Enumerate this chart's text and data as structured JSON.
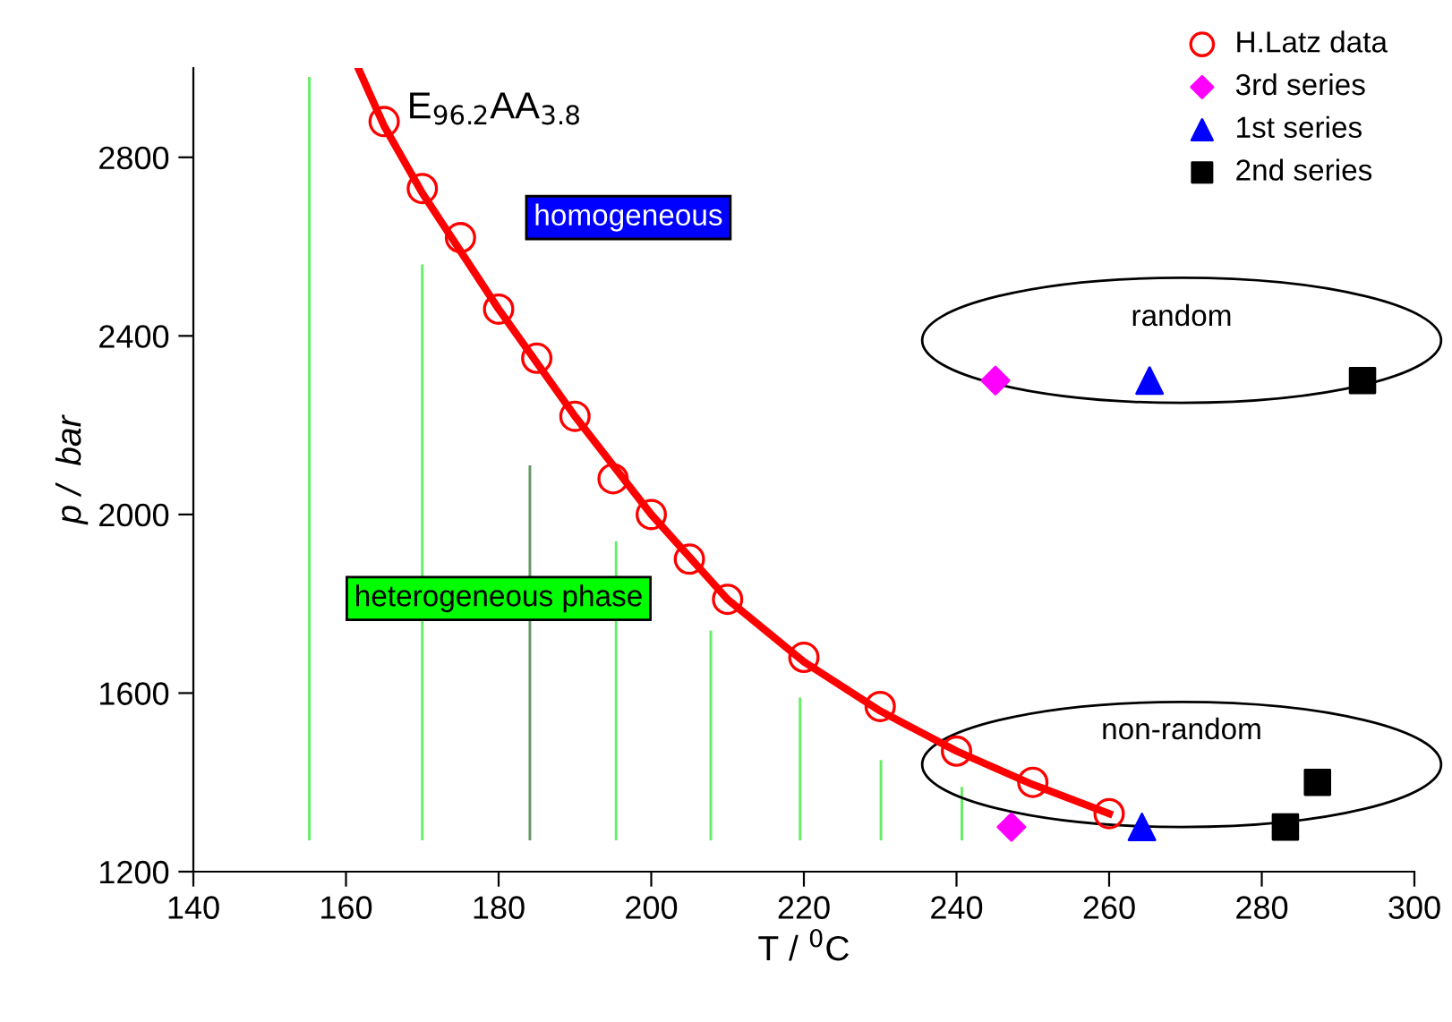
{
  "chart_data": {
    "type": "scatter",
    "xlabel": "T / $^{0}$C",
    "ylabel": "p /  bar",
    "xlim": [
      140,
      300
    ],
    "ylim": [
      1200,
      3000
    ],
    "xticks": [
      140,
      160,
      180,
      200,
      220,
      240,
      260,
      280,
      300
    ],
    "yticks": [
      1200,
      1600,
      2000,
      2400,
      2800
    ],
    "grid": false,
    "legend": "top right",
    "annotations": [
      "E$_{96.2}$AA$_{3.8}$",
      "homogeneous",
      "heterogeneous phase",
      "random",
      "non-random"
    ],
    "series": [
      {
        "type": "bar",
        "x": [
          155.2,
          170,
          184.1,
          195.4,
          207.8,
          219.5,
          230.1,
          240.7
        ],
        "base": [
          1270,
          1270,
          1270,
          1270,
          1270,
          1270,
          1270,
          1270
        ],
        "values": [
          1710,
          1290,
          840,
          670,
          470,
          320,
          180,
          120
        ],
        "colors": [
          "#66ee66",
          "#66ee66",
          "#669966",
          "#66ee66",
          "#66ee66",
          "#66ee66",
          "#66ee66",
          "#66ee66"
        ]
      },
      {
        "type": "line",
        "color": "#ff0000",
        "line_style": "solid",
        "marker": "none",
        "x": [
          161.6,
          165,
          170,
          180,
          190,
          200,
          210,
          220,
          230,
          240,
          250,
          260
        ],
        "values": [
          3000,
          2870,
          2720,
          2460,
          2220,
          2000,
          1810,
          1670,
          1560,
          1470,
          1395,
          1330
        ]
      },
      {
        "name": "H.Latz data",
        "marker": "circle",
        "color": "#ff0000",
        "x": [
          165,
          170,
          175,
          180,
          185,
          190,
          195,
          200,
          205,
          210,
          220,
          230,
          240,
          250,
          260
        ],
        "values": [
          2880,
          2730,
          2620,
          2460,
          2350,
          2220,
          2080,
          2000,
          1900,
          1810,
          1680,
          1570,
          1470,
          1400,
          1330
        ]
      },
      {
        "name": "3rd series",
        "marker": "diamond",
        "color": "#ff00ff",
        "x": [
          245.1,
          247.2
        ],
        "values": [
          2300,
          1300
        ]
      },
      {
        "name": "1st series",
        "marker": "triangle",
        "color": "#0000ff",
        "x": [
          265.3,
          264.3
        ],
        "values": [
          2300,
          1300
        ]
      },
      {
        "name": "2nd series",
        "marker": "square",
        "color": "#000000",
        "x": [
          293.2,
          283.1,
          287.3
        ],
        "values": [
          2300,
          1300,
          1400
        ]
      }
    ]
  }
}
